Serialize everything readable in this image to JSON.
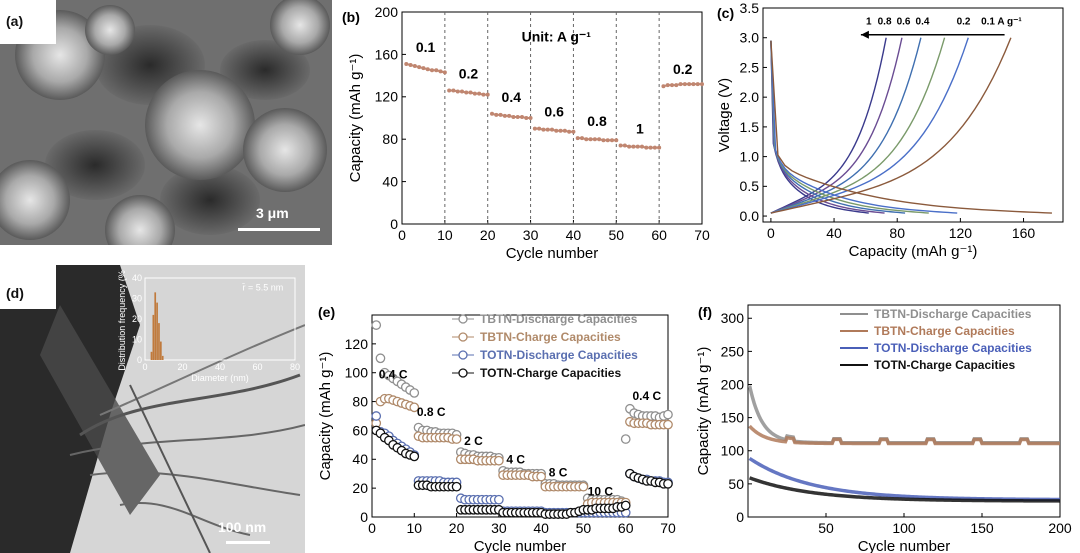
{
  "panels": {
    "a": {
      "label": "(a)",
      "scale": "3 μm"
    },
    "d": {
      "label": "(d)",
      "scale": "100 nm"
    }
  },
  "chart_data": [
    {
      "id": "b",
      "label": "(b)",
      "type": "line",
      "ylabel": "Capacity (mAh g⁻¹)",
      "xlabel": "Cycle number",
      "xlim": [
        0,
        70
      ],
      "ylim": [
        0,
        200
      ],
      "xticks": [
        0,
        10,
        20,
        30,
        40,
        50,
        60,
        70
      ],
      "yticks": [
        0,
        40,
        80,
        120,
        160,
        200
      ],
      "annotation": "Unit: A g⁻¹",
      "color": "#c08670",
      "segments": [
        {
          "label": "0.1",
          "x": [
            1,
            2,
            3,
            4,
            5,
            6,
            7,
            8,
            9,
            10
          ],
          "y": [
            151,
            150,
            149,
            148,
            147,
            146,
            145,
            145,
            144,
            143
          ]
        },
        {
          "label": "0.2",
          "x": [
            11,
            12,
            13,
            14,
            15,
            16,
            17,
            18,
            19,
            20
          ],
          "y": [
            126,
            126,
            125,
            125,
            124,
            124,
            123,
            123,
            122,
            122
          ]
        },
        {
          "label": "0.4",
          "x": [
            21,
            22,
            23,
            24,
            25,
            26,
            27,
            28,
            29,
            30
          ],
          "y": [
            104,
            103,
            103,
            102,
            102,
            101,
            101,
            101,
            100,
            100
          ]
        },
        {
          "label": "0.6",
          "x": [
            31,
            32,
            33,
            34,
            35,
            36,
            37,
            38,
            39,
            40
          ],
          "y": [
            90,
            90,
            89,
            89,
            89,
            88,
            88,
            88,
            87,
            87
          ]
        },
        {
          "label": "0.8",
          "x": [
            41,
            42,
            43,
            44,
            45,
            46,
            47,
            48,
            49,
            50
          ],
          "y": [
            81,
            81,
            80,
            80,
            80,
            80,
            79,
            79,
            79,
            79
          ]
        },
        {
          "label": "1",
          "x": [
            51,
            52,
            53,
            54,
            55,
            56,
            57,
            58,
            59,
            60
          ],
          "y": [
            74,
            74,
            73,
            73,
            73,
            73,
            72,
            72,
            72,
            72
          ]
        },
        {
          "label": "0.2",
          "x": [
            61,
            62,
            63,
            64,
            65,
            66,
            67,
            68,
            69,
            70
          ],
          "y": [
            130,
            131,
            131,
            131,
            132,
            132,
            132,
            132,
            132,
            132
          ]
        }
      ]
    },
    {
      "id": "c",
      "label": "(c)",
      "type": "line",
      "ylabel": "Voltage (V)",
      "xlabel": "Capacity (mAh g⁻¹)",
      "xlim": [
        -5,
        185
      ],
      "ylim": [
        -0.1,
        3.5
      ],
      "xticks": [
        0,
        40,
        80,
        120,
        160
      ],
      "yticks": [
        0.0,
        0.5,
        1.0,
        1.5,
        2.0,
        2.5,
        3.0,
        3.5
      ],
      "rate_labels": [
        "1",
        "0.8",
        "0.6",
        "0.4",
        "0.2",
        "0.1 A g⁻¹"
      ],
      "series": [
        {
          "name": "1",
          "color": "#3a3a8c",
          "discharge_cap": 62,
          "charge_cap": 73
        },
        {
          "name": "0.8",
          "color": "#6a4c93",
          "discharge_cap": 72,
          "charge_cap": 83
        },
        {
          "name": "0.6",
          "color": "#3f6fb0",
          "discharge_cap": 85,
          "charge_cap": 95
        },
        {
          "name": "0.4",
          "color": "#7a9a6a",
          "discharge_cap": 100,
          "charge_cap": 110
        },
        {
          "name": "0.2",
          "color": "#4a6fc8",
          "discharge_cap": 118,
          "charge_cap": 125
        },
        {
          "name": "0.1",
          "color": "#8b5a3c",
          "discharge_cap": 178,
          "charge_cap": 152
        }
      ]
    },
    {
      "id": "d-inset",
      "type": "bar",
      "ylabel": "Distribution frequency (%)",
      "xlabel": "Diameter (nm)",
      "xlim": [
        0,
        80
      ],
      "ylim": [
        0,
        40
      ],
      "xticks": [
        0,
        20,
        40,
        60,
        80
      ],
      "yticks": [
        0,
        10,
        20,
        30,
        40
      ],
      "annotation": "r̄ = 5.5 nm",
      "x": [
        3,
        4,
        5,
        6,
        7,
        8,
        9
      ],
      "values": [
        4,
        22,
        33,
        28,
        18,
        9,
        2
      ],
      "color": "#c07a3c"
    },
    {
      "id": "e",
      "label": "(e)",
      "type": "scatter",
      "ylabel": "Capacity (mAh g⁻¹)",
      "xlabel": "Cycle number",
      "xlim": [
        0,
        70
      ],
      "ylim": [
        0,
        140
      ],
      "xticks": [
        0,
        10,
        20,
        30,
        40,
        50,
        60,
        70
      ],
      "yticks": [
        0,
        20,
        40,
        60,
        80,
        100,
        120
      ],
      "rate_labels": [
        {
          "text": "0.4 C",
          "x": 5,
          "y": 96
        },
        {
          "text": "0.8 C",
          "x": 14,
          "y": 70
        },
        {
          "text": "2 C",
          "x": 24,
          "y": 50
        },
        {
          "text": "4 C",
          "x": 34,
          "y": 37
        },
        {
          "text": "8 C",
          "x": 44,
          "y": 28
        },
        {
          "text": "10 C",
          "x": 54,
          "y": 15
        },
        {
          "text": "0.4 C",
          "x": 65,
          "y": 81
        }
      ],
      "series": [
        {
          "name": "TBTN-Discharge Capacities",
          "color": "#8f8f8f",
          "y": [
            133,
            110,
            100,
            98,
            96,
            94,
            92,
            90,
            88,
            86,
            62,
            60,
            60,
            59,
            59,
            58,
            58,
            58,
            58,
            57,
            45,
            44,
            43,
            43,
            42,
            42,
            42,
            42,
            41,
            41,
            32,
            31,
            31,
            31,
            31,
            30,
            30,
            30,
            30,
            30,
            23,
            23,
            23,
            22,
            22,
            22,
            22,
            22,
            22,
            22,
            13,
            12,
            12,
            12,
            12,
            12,
            12,
            12,
            11,
            54,
            75,
            72,
            71,
            70,
            70,
            70,
            70,
            69,
            70,
            71
          ]
        },
        {
          "name": "TBTN-Charge Capacities",
          "color": "#b08a6a",
          "y": [
            65,
            80,
            82,
            82,
            81,
            80,
            79,
            78,
            77,
            76,
            56,
            55,
            55,
            55,
            55,
            55,
            55,
            55,
            54,
            54,
            40,
            40,
            40,
            40,
            39,
            39,
            39,
            39,
            39,
            39,
            29,
            29,
            29,
            29,
            29,
            29,
            29,
            28,
            28,
            28,
            21,
            21,
            21,
            21,
            21,
            21,
            21,
            21,
            21,
            21,
            9,
            10,
            10,
            10,
            10,
            10,
            10,
            10,
            10,
            10,
            66,
            65,
            65,
            65,
            65,
            64,
            64,
            64,
            64,
            64
          ]
        },
        {
          "name": "TOTN-Discharge Capacities",
          "color": "#5a6fb0",
          "y": [
            70,
            59,
            58,
            56,
            53,
            51,
            49,
            47,
            45,
            43,
            25,
            25,
            25,
            25,
            25,
            25,
            24,
            24,
            24,
            24,
            13,
            12,
            12,
            12,
            12,
            12,
            12,
            12,
            12,
            12,
            4,
            4,
            4,
            4,
            4,
            4,
            4,
            4,
            4,
            4,
            3,
            3,
            3,
            3,
            3,
            3,
            3,
            3,
            3,
            3,
            3,
            3,
            3,
            3,
            3,
            3,
            3,
            3,
            3,
            3,
            30,
            28,
            27,
            26,
            26,
            25,
            25,
            25,
            24,
            24
          ]
        },
        {
          "name": "TOTN-Charge Capacities",
          "color": "#111111",
          "y": [
            60,
            58,
            55,
            53,
            50,
            48,
            46,
            44,
            43,
            42,
            22,
            22,
            22,
            21,
            21,
            21,
            21,
            21,
            21,
            21,
            5,
            5,
            5,
            5,
            5,
            5,
            5,
            5,
            5,
            5,
            3,
            3,
            3,
            3,
            3,
            3,
            3,
            3,
            3,
            3,
            2,
            2,
            2,
            2,
            2,
            2,
            3,
            3,
            4,
            5,
            5,
            5,
            6,
            6,
            6,
            6,
            6,
            7,
            7,
            8,
            30,
            28,
            27,
            26,
            25,
            25,
            24,
            24,
            23,
            23
          ]
        }
      ]
    },
    {
      "id": "f",
      "label": "(f)",
      "type": "scatter",
      "ylabel": "Capacity (mAh g⁻¹)",
      "xlabel": "Cycle number",
      "xlim": [
        0,
        200
      ],
      "ylim": [
        0,
        320
      ],
      "xticks": [
        50,
        100,
        150,
        200
      ],
      "yticks": [
        0,
        50,
        100,
        150,
        200,
        250,
        300
      ],
      "series": [
        {
          "name": "TBTN-Discharge Capacities",
          "color": "#8f8f8f",
          "start": 210,
          "plateau": 112,
          "decay": 8
        },
        {
          "name": "TBTN-Charge Capacities",
          "color": "#b07a5a",
          "start": 140,
          "plateau": 111,
          "decay": 10
        },
        {
          "name": "TOTN-Discharge Capacities",
          "color": "#4a5fb8",
          "start": 90,
          "plateau": 26,
          "decay": 40
        },
        {
          "name": "TOTN-Charge Capacities",
          "color": "#111111",
          "start": 60,
          "plateau": 24,
          "decay": 40
        }
      ]
    }
  ]
}
